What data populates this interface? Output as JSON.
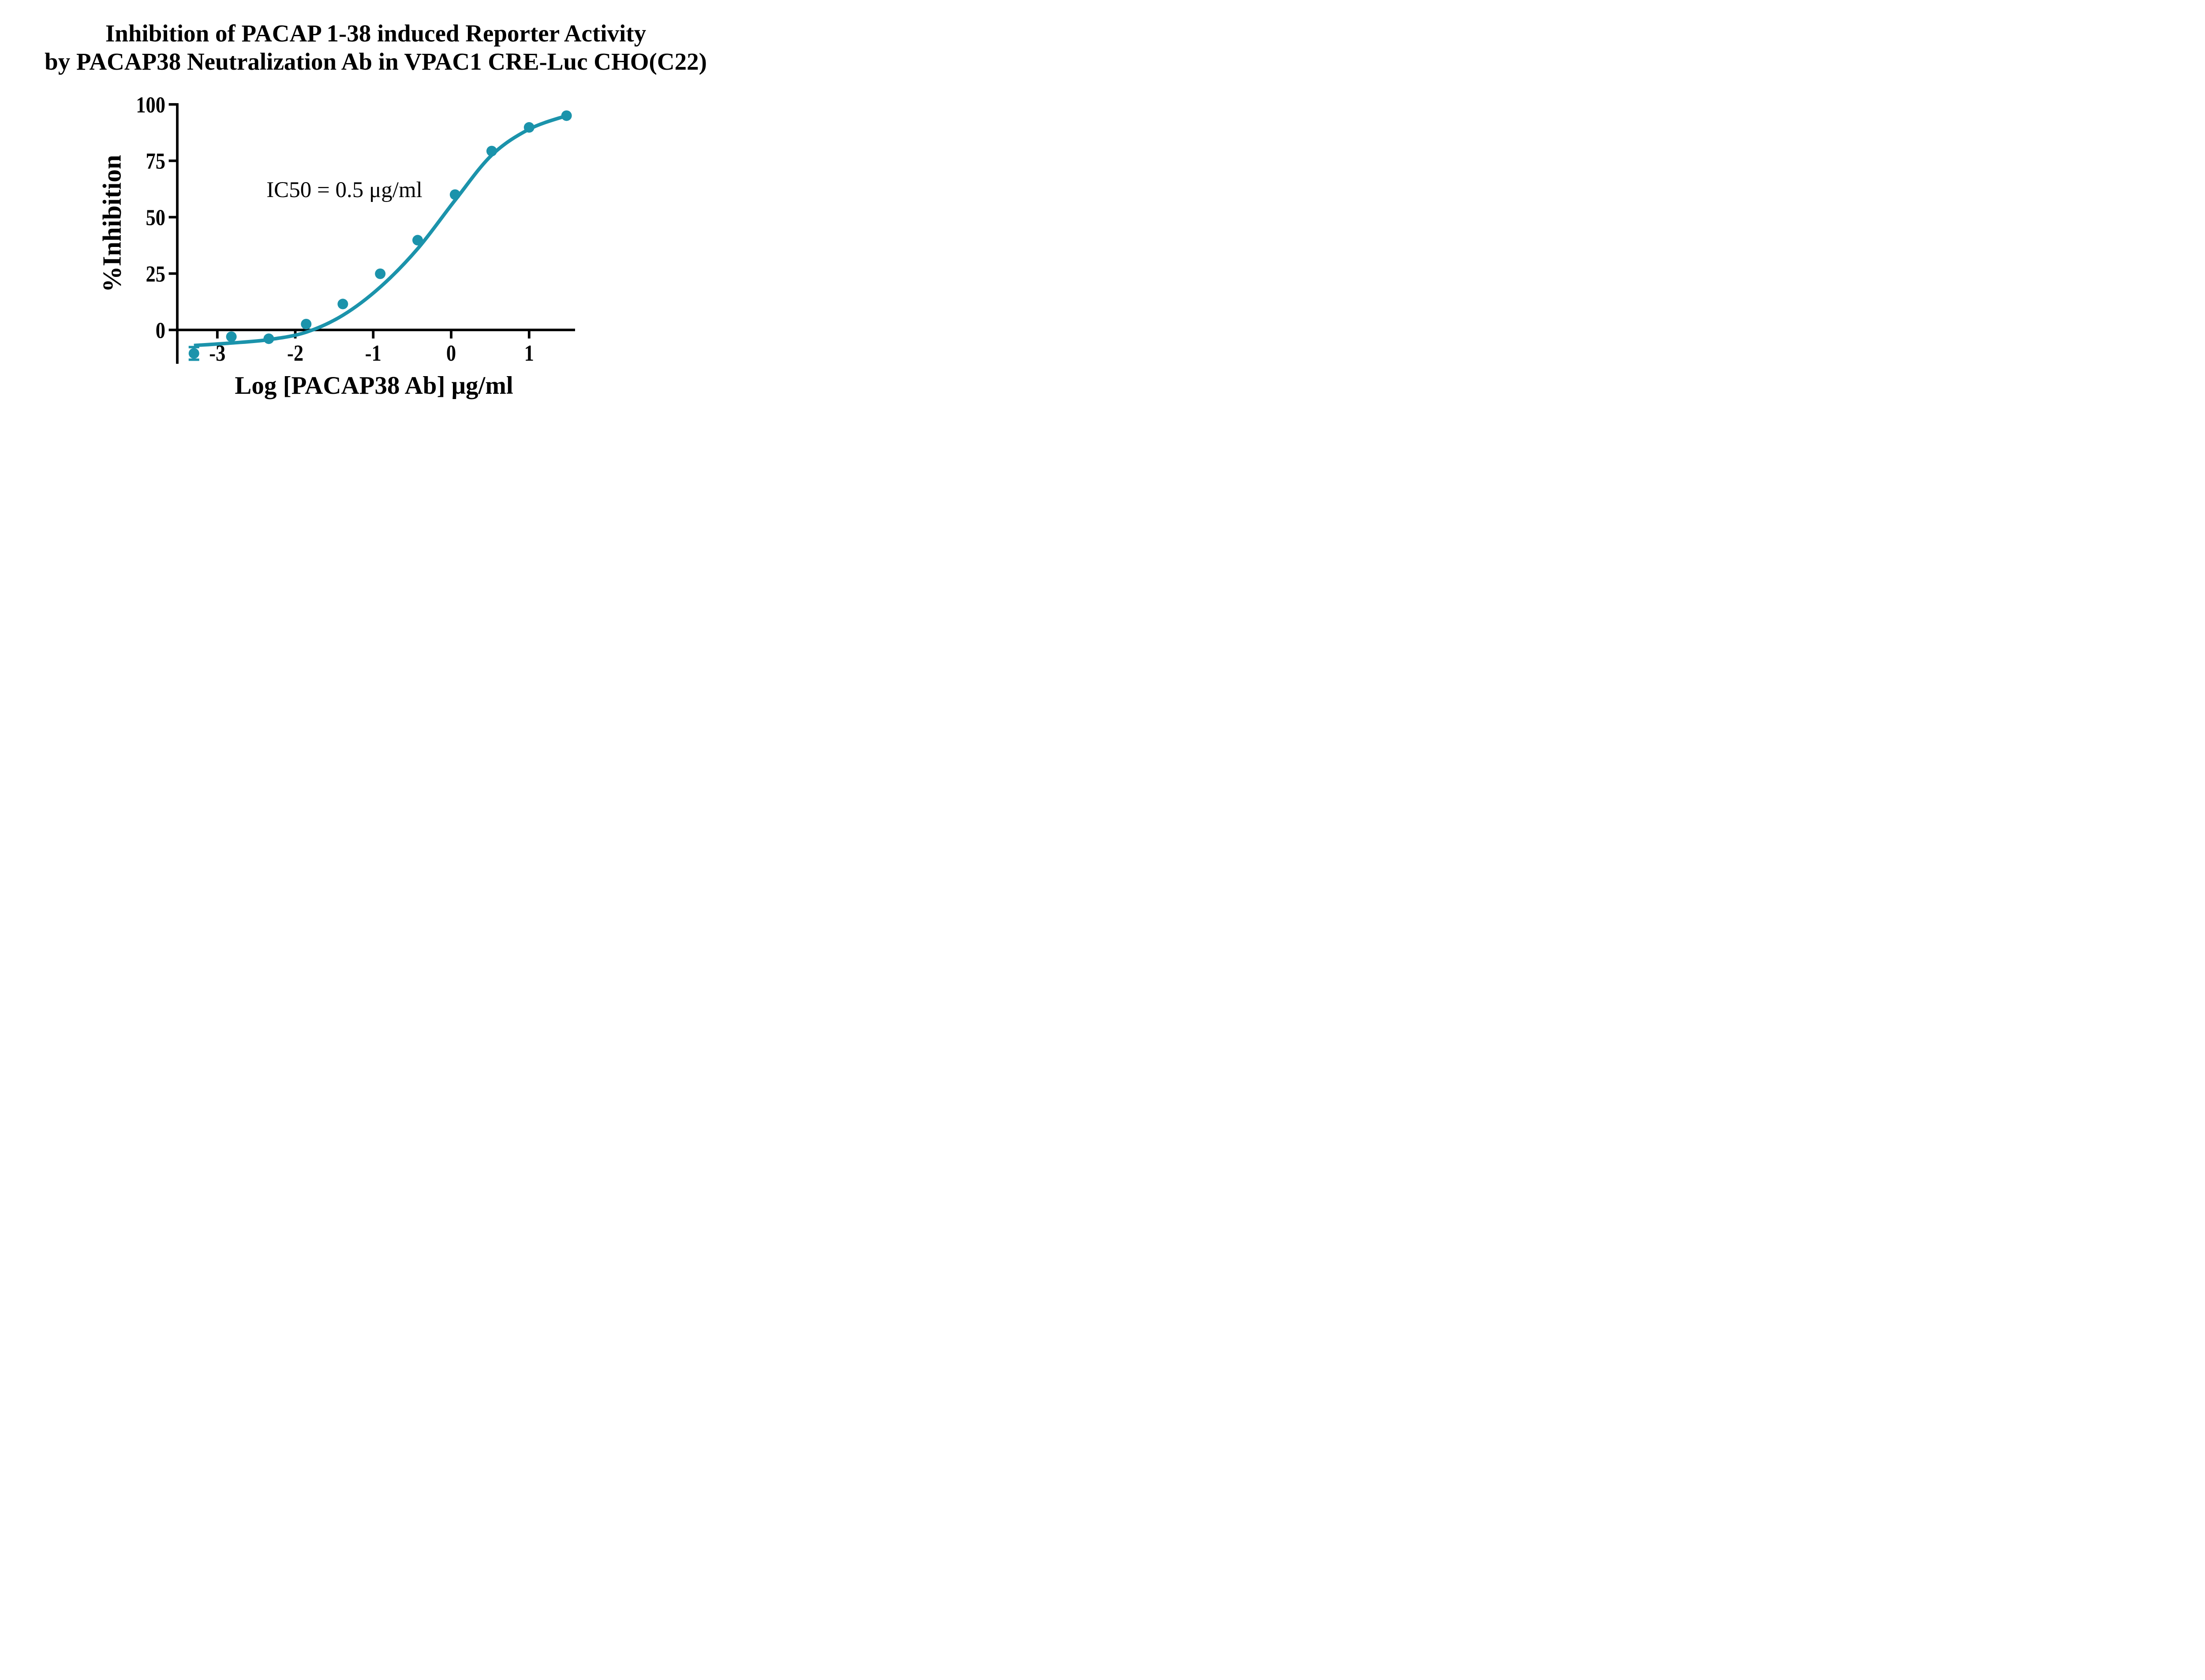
{
  "figure": {
    "title_line1": "Inhibition of PACAP 1-38 induced Reporter Activity",
    "title_line2": "by PACAP38 Neutralization Ab in VPAC1 CRE-Luc CHO(C22)"
  },
  "colors": {
    "series": "#1b93ab",
    "axis": "#000000",
    "text": "#000000",
    "background": "#ffffff"
  },
  "chart_data": {
    "type": "scatter",
    "title": "Inhibition of PACAP 1-38 induced Reporter Activity by PACAP38 Neutralization Ab in VPAC1 CRE-Luc CHO(C22)",
    "xlabel": "Log [PACAP38 Ab] μg/ml",
    "ylabel": "%Inhibition",
    "annotation": "IC50 = 0.5 μg/ml",
    "x_ticks": [
      -3,
      -2,
      -1,
      0,
      1
    ],
    "y_ticks": [
      0,
      25,
      50,
      75,
      100
    ],
    "xlim": [
      -3.51,
      1.59
    ],
    "ylim": [
      -15,
      100
    ],
    "grid": false,
    "legend": null,
    "series": [
      {
        "name": "PACAP38 Neutralization Ab",
        "marker": "circle",
        "color": "#1b93ab",
        "points": [
          {
            "x": -3.3,
            "y": -10.4,
            "y_err": 2.8
          },
          {
            "x": -2.82,
            "y": -3.0
          },
          {
            "x": -2.34,
            "y": -3.9
          },
          {
            "x": -1.86,
            "y": 2.6
          },
          {
            "x": -1.39,
            "y": 11.5
          },
          {
            "x": -0.91,
            "y": 24.9
          },
          {
            "x": -0.43,
            "y": 39.8
          },
          {
            "x": 0.05,
            "y": 60.0
          },
          {
            "x": 0.52,
            "y": 79.3
          },
          {
            "x": 1.0,
            "y": 89.8
          },
          {
            "x": 1.48,
            "y": 95.0
          }
        ],
        "fit_curve": [
          [
            -3.3,
            -6.9
          ],
          [
            -2.82,
            -5.8
          ],
          [
            -2.34,
            -4.3
          ],
          [
            -1.86,
            -1.0
          ],
          [
            -1.39,
            6.5
          ],
          [
            -0.91,
            19.0
          ],
          [
            -0.43,
            36.0
          ],
          [
            0.05,
            57.5
          ],
          [
            0.52,
            77.5
          ],
          [
            1.0,
            89.0
          ],
          [
            1.48,
            95.0
          ]
        ],
        "ic50_ug_ml": 0.5
      }
    ]
  }
}
